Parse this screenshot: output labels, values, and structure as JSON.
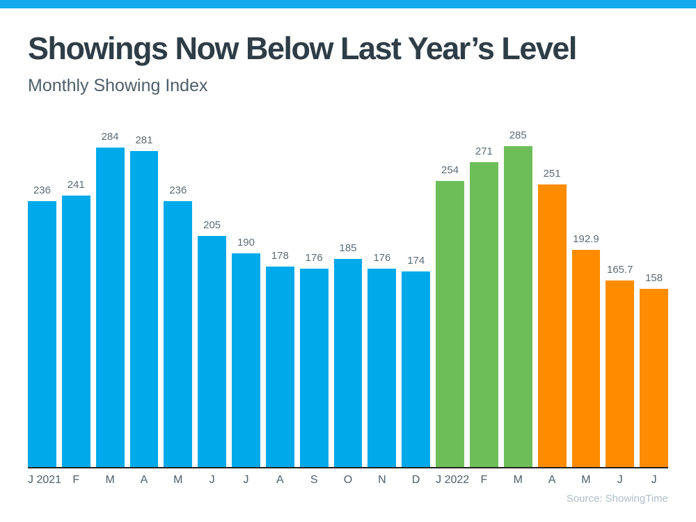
{
  "header": {
    "title": "Showings Now Below Last Year’s Level",
    "subtitle": "Monthly Showing Index"
  },
  "footer": {
    "source": "Source: ShowingTime"
  },
  "colors": {
    "accent_strip": "#12AAEA",
    "bar_blue": "#00A9E9",
    "bar_green": "#6DBE59",
    "bar_orange": "#FF8C00",
    "title_text": "#2E3D46",
    "subtitle_text": "#4D5F69",
    "value_label_text": "#5D6B75",
    "axis_label_text": "#4E5D67",
    "axis_line": "#212121",
    "source_text": "#AFBEC7"
  },
  "chart_data": {
    "type": "bar",
    "title": "Showings Now Below Last Year’s Level",
    "subtitle": "Monthly Showing Index",
    "xlabel": "",
    "ylabel": "",
    "ylim": [
      0,
      285
    ],
    "grid": false,
    "legend": "none",
    "y_axis_visible": false,
    "data_labels": "above bars",
    "categories": [
      "J 2021",
      "F",
      "M",
      "A",
      "M",
      "J",
      "J",
      "A",
      "S",
      "O",
      "N",
      "D",
      "J 2022",
      "F",
      "M",
      "A",
      "M",
      "J",
      "J"
    ],
    "values": [
      236,
      241,
      284,
      281,
      236,
      205,
      190,
      178,
      176,
      185,
      176,
      174,
      254,
      271,
      285,
      251,
      192.9,
      165.7,
      158
    ],
    "value_labels": [
      "236",
      "241",
      "284",
      "281",
      "236",
      "205",
      "190",
      "178",
      "176",
      "185",
      "176",
      "174",
      "254",
      "271",
      "285",
      "251",
      "192.9",
      "165.7",
      "158"
    ],
    "bar_colors": [
      "blue",
      "blue",
      "blue",
      "blue",
      "blue",
      "blue",
      "blue",
      "blue",
      "blue",
      "blue",
      "blue",
      "blue",
      "green",
      "green",
      "green",
      "orange",
      "orange",
      "orange",
      "orange"
    ],
    "color_meaning": {
      "blue": "2021 months (Jan–Dec 2021)",
      "green": "Jan–Mar 2022",
      "orange": "Apr–Jul 2022"
    }
  }
}
